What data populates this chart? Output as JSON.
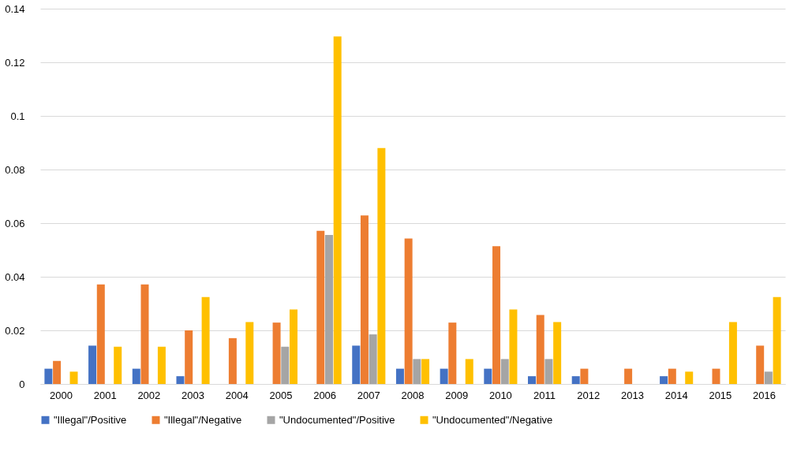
{
  "chart_data": {
    "type": "bar",
    "categories": [
      "2000",
      "2001",
      "2002",
      "2003",
      "2004",
      "2005",
      "2006",
      "2007",
      "2008",
      "2009",
      "2010",
      "2011",
      "2012",
      "2013",
      "2014",
      "2015",
      "2016"
    ],
    "series": [
      {
        "name": "\"Illegal\"/Positive",
        "color": "#4472c4",
        "values": [
          0.0057,
          0.0143,
          0.0057,
          0.0029,
          0,
          0,
          0,
          0.0143,
          0.0057,
          0.0057,
          0.0057,
          0.0029,
          0.0029,
          0,
          0.0029,
          0,
          0
        ]
      },
      {
        "name": "\"Illegal\"/Negative",
        "color": "#ed7d31",
        "values": [
          0.0086,
          0.0371,
          0.0371,
          0.02,
          0.0171,
          0.0229,
          0.0571,
          0.0629,
          0.0543,
          0.0229,
          0.0514,
          0.0257,
          0.0057,
          0.0057,
          0.0057,
          0.0057,
          0.0143
        ]
      },
      {
        "name": "\"Undocumented\"/Positive",
        "color": "#a5a5a5",
        "values": [
          0,
          0,
          0,
          0,
          0,
          0.0139,
          0.0556,
          0.0185,
          0.0093,
          0,
          0.0093,
          0.0093,
          0,
          0,
          0,
          0,
          0.0046
        ]
      },
      {
        "name": "\"Undocumented\"/Negative",
        "color": "#ffc000",
        "values": [
          0.0046,
          0.0139,
          0.0139,
          0.0324,
          0.0231,
          0.0278,
          0.1296,
          0.088,
          0.0093,
          0.0093,
          0.0278,
          0.0231,
          0,
          0,
          0.0046,
          0.0231,
          0.0324
        ]
      }
    ],
    "ylim": [
      0,
      0.14
    ],
    "yticks": [
      0,
      0.02,
      0.04,
      0.06,
      0.08,
      0.1,
      0.12,
      0.14
    ],
    "grid": "y",
    "legend": "bottom"
  }
}
